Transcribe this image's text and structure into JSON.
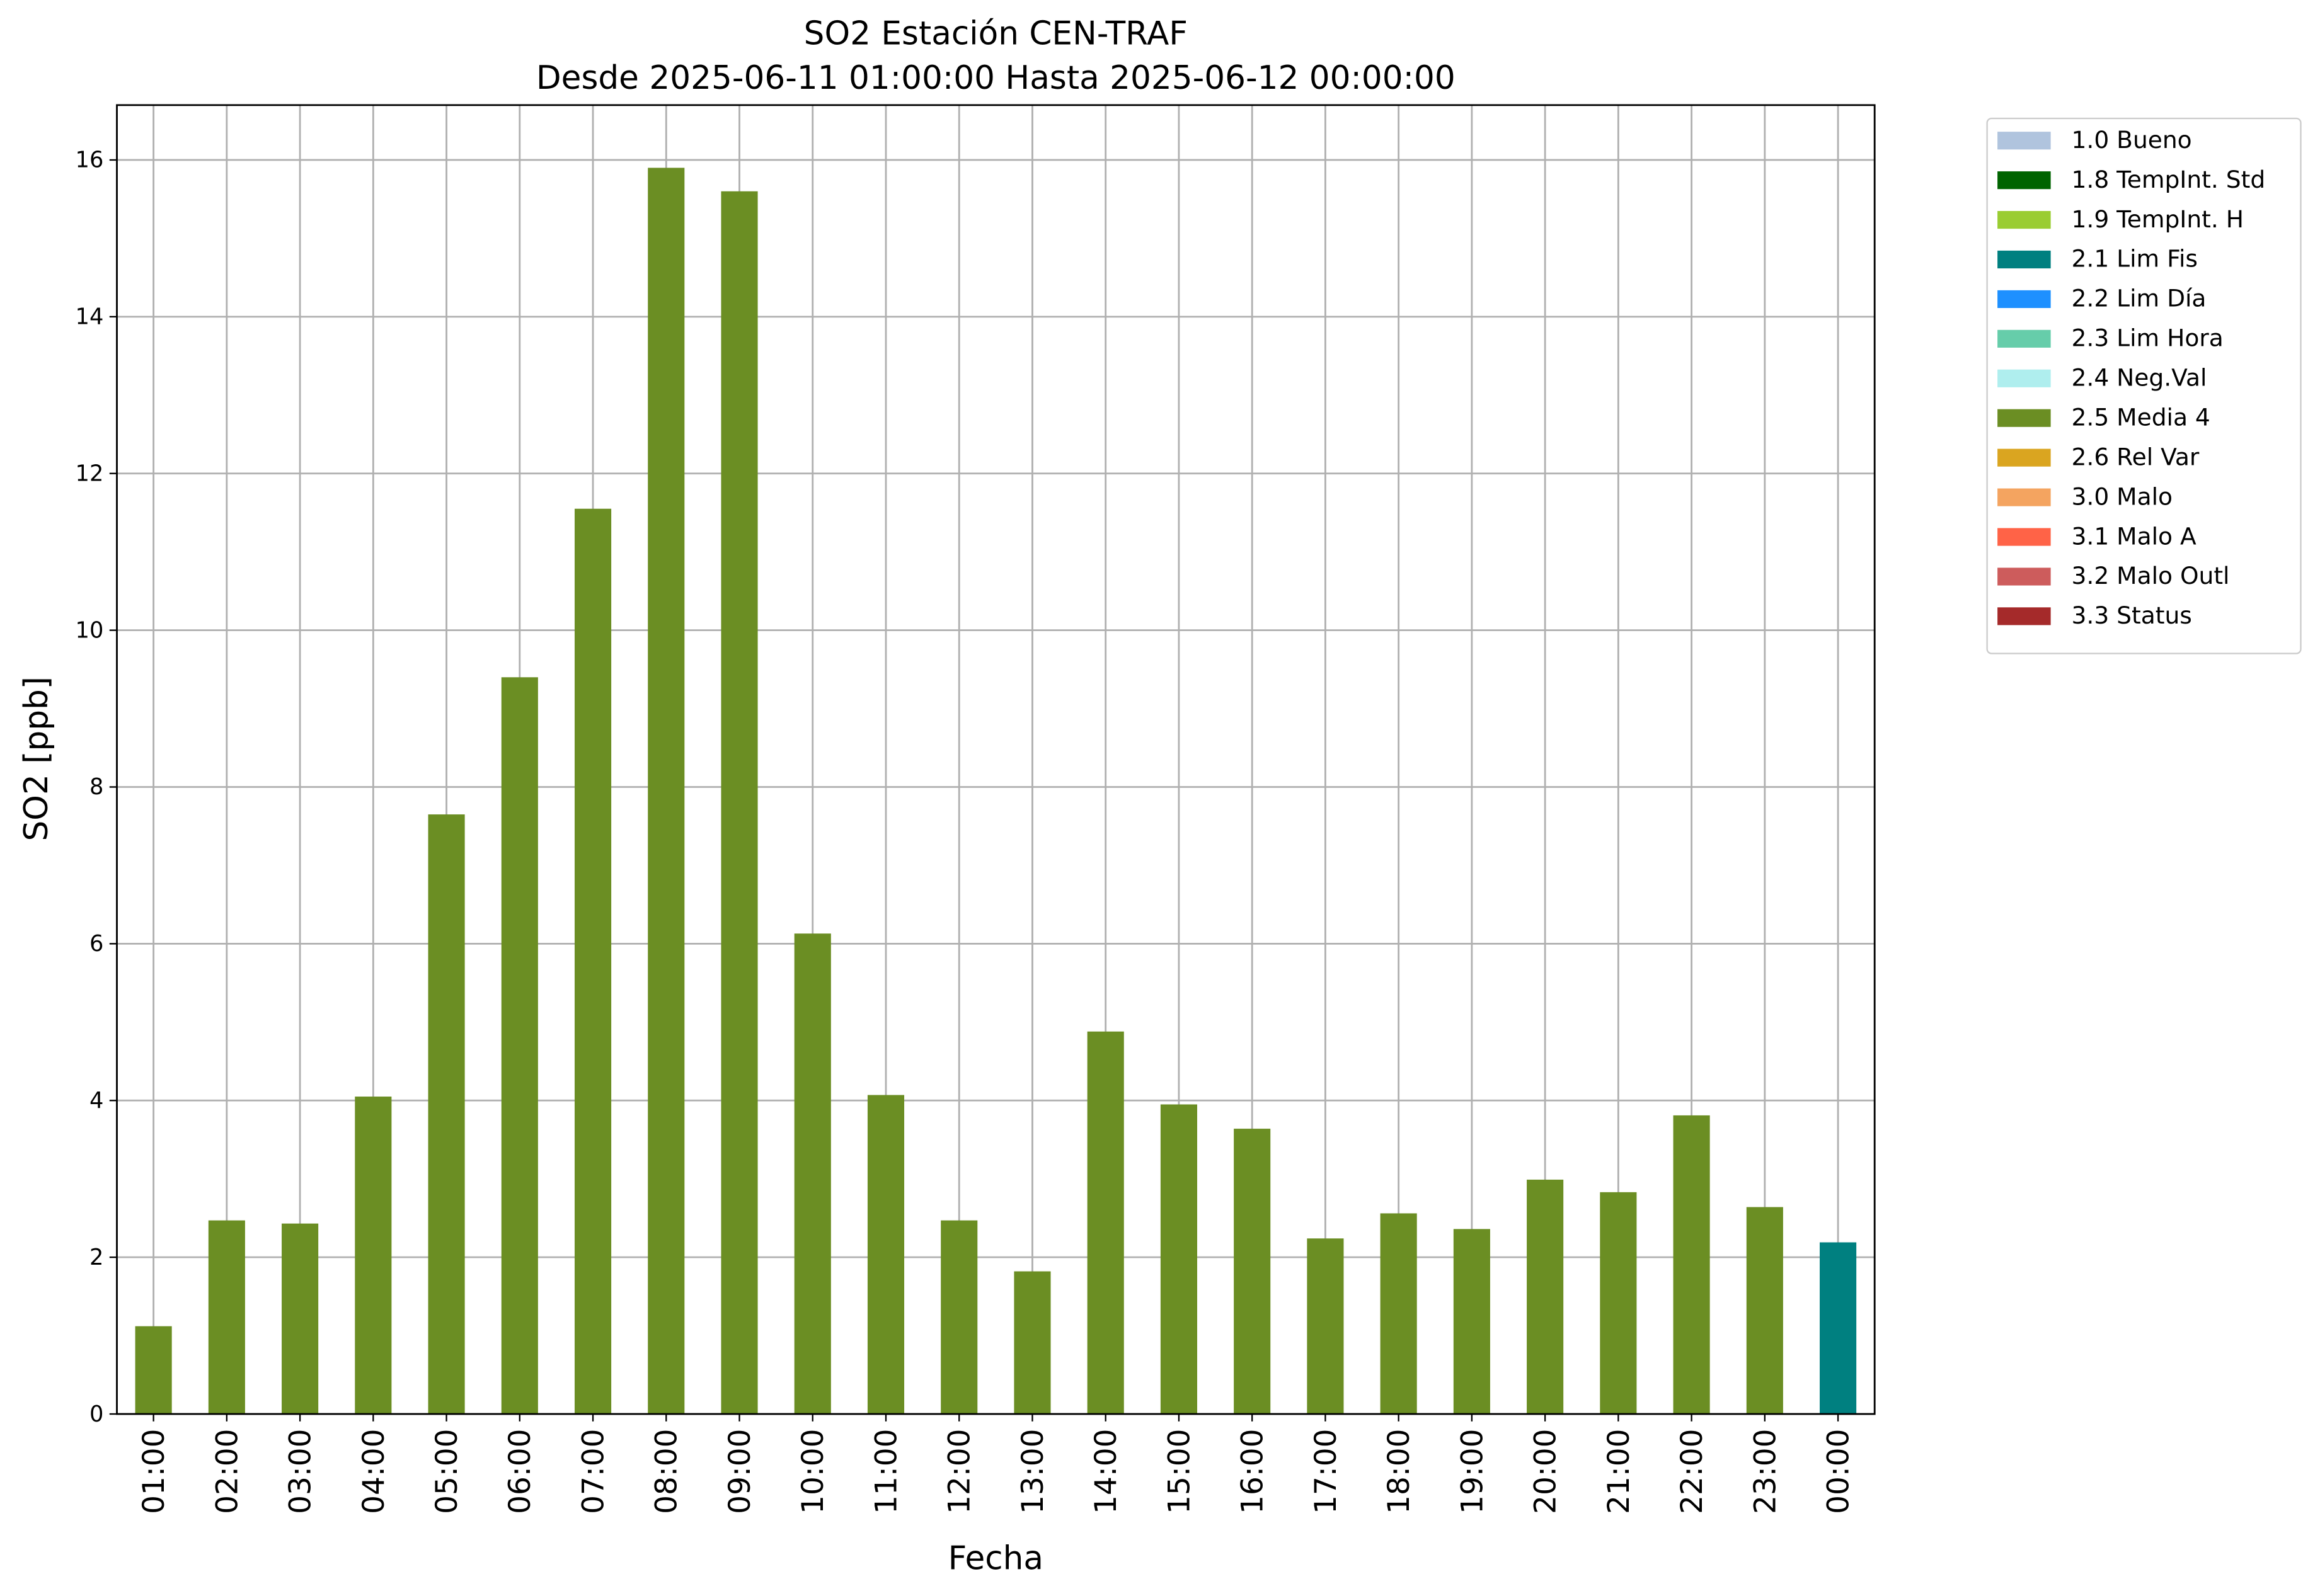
{
  "chart_data": {
    "type": "bar",
    "stacked": true,
    "title": "SO2 Estación CEN-TRAF",
    "subtitle": "Desde 2025-06-11 01:00:00 Hasta 2025-06-12 00:00:00",
    "x_label": "Fecha",
    "y_label": "SO2 [ppb]",
    "categories": [
      "01:00",
      "02:00",
      "03:00",
      "04:00",
      "05:00",
      "06:00",
      "07:00",
      "08:00",
      "09:00",
      "10:00",
      "11:00",
      "12:00",
      "13:00",
      "14:00",
      "15:00",
      "16:00",
      "17:00",
      "18:00",
      "19:00",
      "20:00",
      "21:00",
      "22:00",
      "23:00",
      "00:00"
    ],
    "series": [
      {
        "name": "1.0 Bueno",
        "color": "#b0c4de",
        "values": [
          null,
          null,
          null,
          null,
          null,
          null,
          null,
          null,
          null,
          null,
          null,
          null,
          null,
          null,
          null,
          null,
          null,
          null,
          null,
          null,
          null,
          null,
          null,
          null
        ]
      },
      {
        "name": "1.8 TempInt. Std",
        "color": "#006400",
        "values": [
          null,
          null,
          null,
          null,
          null,
          null,
          null,
          null,
          null,
          null,
          null,
          null,
          null,
          null,
          null,
          null,
          null,
          null,
          null,
          null,
          null,
          null,
          null,
          null
        ]
      },
      {
        "name": "1.9 TempInt. H",
        "color": "#9acd32",
        "values": [
          null,
          null,
          null,
          null,
          null,
          null,
          null,
          null,
          null,
          null,
          null,
          null,
          null,
          null,
          null,
          null,
          null,
          null,
          null,
          null,
          null,
          null,
          null,
          null
        ]
      },
      {
        "name": "2.1 Lim Fis",
        "color": "#008080",
        "values": [
          null,
          null,
          null,
          null,
          null,
          null,
          null,
          null,
          null,
          null,
          null,
          null,
          null,
          null,
          null,
          null,
          null,
          null,
          null,
          null,
          null,
          null,
          null,
          2.19
        ]
      },
      {
        "name": "2.2 Lim Día",
        "color": "#1e90ff",
        "values": [
          null,
          null,
          null,
          null,
          null,
          null,
          null,
          null,
          null,
          null,
          null,
          null,
          null,
          null,
          null,
          null,
          null,
          null,
          null,
          null,
          null,
          null,
          null,
          null
        ]
      },
      {
        "name": "2.3 Lim Hora",
        "color": "#66cdaa",
        "values": [
          null,
          null,
          null,
          null,
          null,
          null,
          null,
          null,
          null,
          null,
          null,
          null,
          null,
          null,
          null,
          null,
          null,
          null,
          null,
          null,
          null,
          null,
          null,
          null
        ]
      },
      {
        "name": "2.4 Neg.Val",
        "color": "#afeeee",
        "values": [
          null,
          null,
          null,
          null,
          null,
          null,
          null,
          null,
          null,
          null,
          null,
          null,
          null,
          null,
          null,
          null,
          null,
          null,
          null,
          null,
          null,
          null,
          null,
          null
        ]
      },
      {
        "name": "2.5 Media 4",
        "color": "#6b8e23",
        "values": [
          1.12,
          2.47,
          2.43,
          4.05,
          7.65,
          9.4,
          11.55,
          15.9,
          15.6,
          6.13,
          4.07,
          2.47,
          1.82,
          4.88,
          3.95,
          3.64,
          2.24,
          2.56,
          2.36,
          2.99,
          2.83,
          3.81,
          2.64,
          null
        ]
      },
      {
        "name": "2.6 Rel Var",
        "color": "#daa520",
        "values": [
          null,
          null,
          null,
          null,
          null,
          null,
          null,
          null,
          null,
          null,
          null,
          null,
          null,
          null,
          null,
          null,
          null,
          null,
          null,
          null,
          null,
          null,
          null,
          null
        ]
      },
      {
        "name": "3.0 Malo",
        "color": "#f4a460",
        "values": [
          null,
          null,
          null,
          null,
          null,
          null,
          null,
          null,
          null,
          null,
          null,
          null,
          null,
          null,
          null,
          null,
          null,
          null,
          null,
          null,
          null,
          null,
          null,
          null
        ]
      },
      {
        "name": "3.1 Malo A",
        "color": "#ff6347",
        "values": [
          null,
          null,
          null,
          null,
          null,
          null,
          null,
          null,
          null,
          null,
          null,
          null,
          null,
          null,
          null,
          null,
          null,
          null,
          null,
          null,
          null,
          null,
          null,
          null
        ]
      },
      {
        "name": "3.2 Malo Outl",
        "color": "#cd5c5c",
        "values": [
          null,
          null,
          null,
          null,
          null,
          null,
          null,
          null,
          null,
          null,
          null,
          null,
          null,
          null,
          null,
          null,
          null,
          null,
          null,
          null,
          null,
          null,
          null,
          null
        ]
      },
      {
        "name": "3.3 Status",
        "color": "#a52a2a",
        "values": [
          null,
          null,
          null,
          null,
          null,
          null,
          null,
          null,
          null,
          null,
          null,
          null,
          null,
          null,
          null,
          null,
          null,
          null,
          null,
          null,
          null,
          null,
          null,
          null
        ]
      }
    ],
    "ylim": [
      0,
      16.7
    ],
    "yticks": [
      0,
      2,
      4,
      6,
      8,
      10,
      12,
      14,
      16
    ],
    "grid": true,
    "legend": "outside-right"
  }
}
